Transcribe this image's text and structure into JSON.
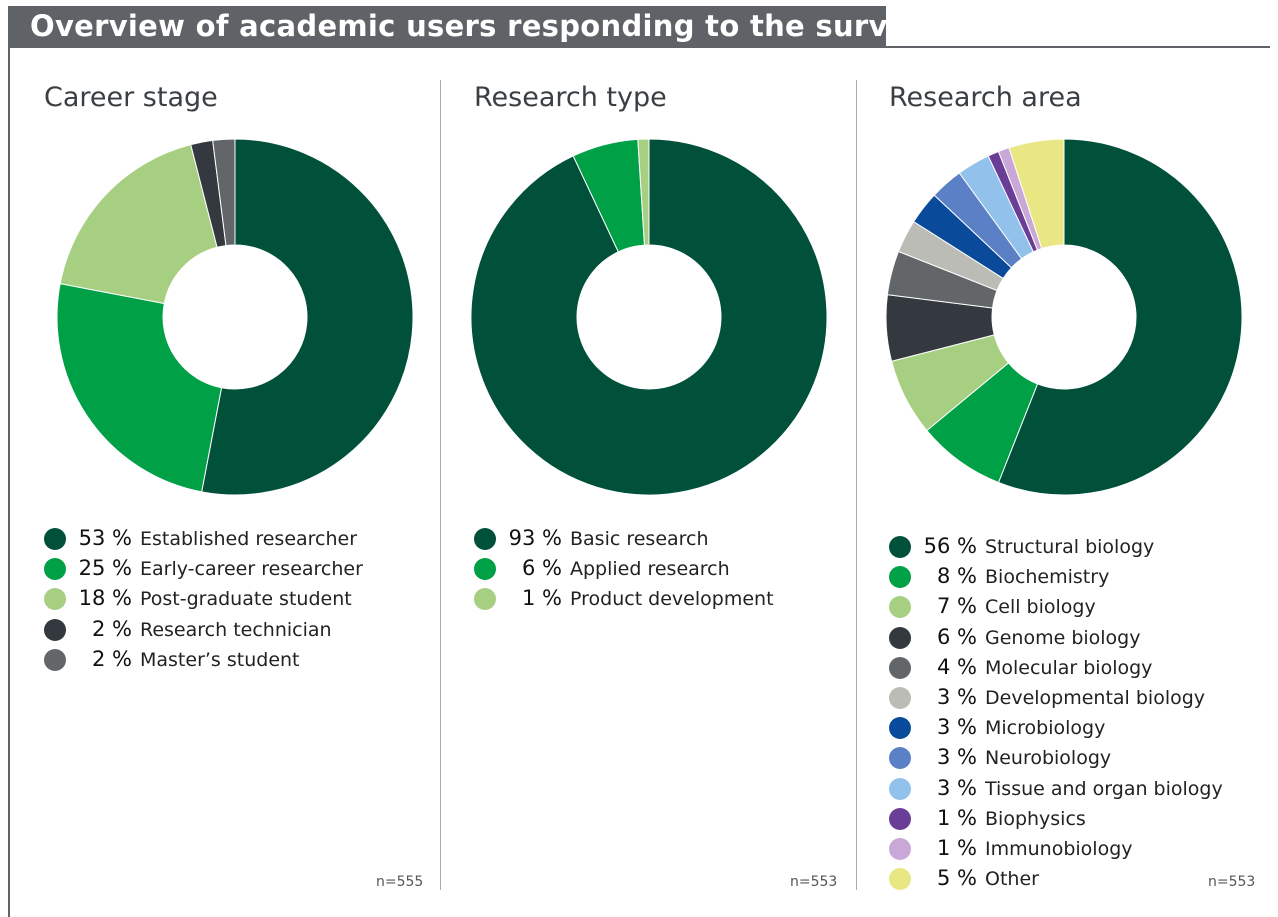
{
  "header": {
    "title": "Overview of academic users responding to the survey"
  },
  "pct_suffix": "%",
  "chart_data": [
    {
      "type": "pie",
      "title": "Career stage",
      "n_label": "n=555",
      "categories": [
        "Established researcher",
        "Early-career researcher",
        "Post-graduate student",
        "Research technician",
        "Master’s student"
      ],
      "values": [
        53,
        25,
        18,
        2,
        2
      ],
      "colors": [
        "#00503a",
        "#00a046",
        "#a7cf82",
        "#33393e",
        "#626669"
      ]
    },
    {
      "type": "pie",
      "title": "Research type",
      "n_label": "n=553",
      "categories": [
        "Basic research",
        "Applied research",
        "Product development"
      ],
      "values": [
        93,
        6,
        1
      ],
      "colors": [
        "#00503a",
        "#00a046",
        "#a7cf82"
      ]
    },
    {
      "type": "pie",
      "title": "Research area",
      "n_label": "n=553",
      "categories": [
        "Structural biology",
        "Biochemistry",
        "Cell biology",
        "Genome biology",
        "Molecular biology",
        "Developmental biology",
        "Microbiology",
        "Neurobiology",
        "Tissue and organ biology",
        "Biophysics",
        "Immunobiology",
        "Other"
      ],
      "values": [
        56,
        8,
        7,
        6,
        4,
        3,
        3,
        3,
        3,
        1,
        1,
        5
      ],
      "colors": [
        "#00503a",
        "#00a046",
        "#a7cf82",
        "#33393e",
        "#626669",
        "#bbbcb6",
        "#0a4a9a",
        "#5b80c6",
        "#92c2ec",
        "#6a3d96",
        "#c9a8d8",
        "#e8e783"
      ]
    }
  ]
}
